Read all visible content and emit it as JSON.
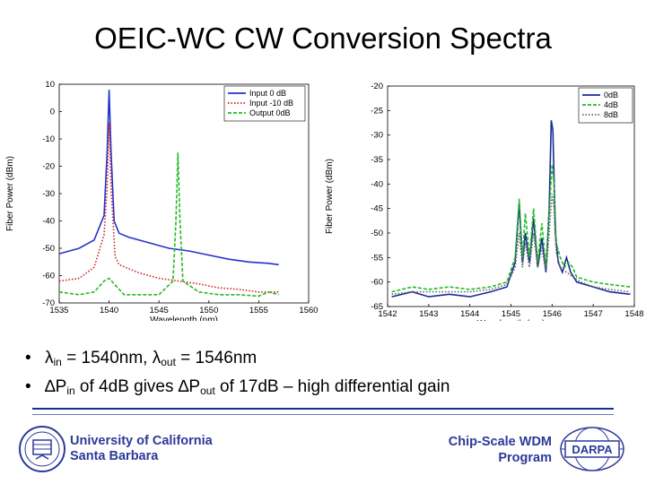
{
  "title": "OEIC-WC CW Conversion Spectra",
  "bullets": [
    {
      "sym": "λ",
      "a": "in",
      "b": " = 1540nm, ",
      "sym2": "λ",
      "c": "out",
      "d": " = 1546nm"
    },
    {
      "sym": "∆P",
      "a": "in",
      "b": " of 4dB gives ",
      "sym2": "∆P",
      "c": "out",
      "d": " of 17dB – high differential gain"
    }
  ],
  "footer": {
    "org_line1": "University of California",
    "org_line2": "Santa Barbara",
    "program_line1": "Chip-Scale WDM",
    "program_line2": "Program",
    "darpa_logo_text": "DARPA"
  },
  "chart_data": [
    {
      "type": "line",
      "xlabel": "Wavelength (nm)",
      "ylabel": "Fiber Power (dBm)",
      "xlim": [
        1535,
        1560
      ],
      "ylim": [
        -70,
        10
      ],
      "xticks": [
        1535,
        1540,
        1545,
        1550,
        1555,
        1560
      ],
      "yticks": [
        10,
        0,
        -10,
        -20,
        -30,
        -40,
        -50,
        -60,
        -70
      ],
      "legend_position": "top-right",
      "series": [
        {
          "name": "Input 0 dB",
          "color": "#2233cc",
          "style": "solid",
          "points": [
            [
              1535,
              -52
            ],
            [
              1537,
              -50
            ],
            [
              1538.5,
              -47
            ],
            [
              1539.5,
              -38
            ],
            [
              1539.8,
              -15
            ],
            [
              1540,
              8
            ],
            [
              1540.2,
              -15
            ],
            [
              1540.5,
              -40
            ],
            [
              1541,
              -44.5
            ],
            [
              1542,
              -46
            ],
            [
              1544,
              -48
            ],
            [
              1546,
              -50
            ],
            [
              1548,
              -51
            ],
            [
              1550,
              -52.5
            ],
            [
              1552,
              -54
            ],
            [
              1554,
              -55
            ],
            [
              1556,
              -55.5
            ],
            [
              1557,
              -56
            ]
          ]
        },
        {
          "name": "Input -10 dB",
          "color": "#cc2222",
          "style": "dotted",
          "points": [
            [
              1535,
              -62
            ],
            [
              1537,
              -61
            ],
            [
              1538.5,
              -57
            ],
            [
              1539.5,
              -45
            ],
            [
              1539.8,
              -28
            ],
            [
              1540,
              -4
            ],
            [
              1540.2,
              -28
            ],
            [
              1540.6,
              -53
            ],
            [
              1541,
              -56
            ],
            [
              1543,
              -59
            ],
            [
              1545,
              -61
            ],
            [
              1547,
              -62
            ],
            [
              1549,
              -63
            ],
            [
              1551,
              -64.5
            ],
            [
              1553,
              -65
            ],
            [
              1555,
              -66
            ],
            [
              1557,
              -66
            ]
          ]
        },
        {
          "name": "Output 0dB",
          "color": "#22bb22",
          "style": "dashed",
          "points": [
            [
              1535,
              -66
            ],
            [
              1537,
              -67
            ],
            [
              1538.5,
              -66
            ],
            [
              1539.5,
              -62
            ],
            [
              1540,
              -61
            ],
            [
              1540.5,
              -63
            ],
            [
              1541.5,
              -67
            ],
            [
              1543,
              -67
            ],
            [
              1545,
              -67
            ],
            [
              1546.4,
              -62
            ],
            [
              1546.7,
              -40
            ],
            [
              1546.9,
              -15
            ],
            [
              1547.1,
              -40
            ],
            [
              1547.4,
              -62
            ],
            [
              1549,
              -66
            ],
            [
              1551,
              -67
            ],
            [
              1553,
              -67
            ],
            [
              1555,
              -67.5
            ],
            [
              1556,
              -66
            ],
            [
              1557,
              -67
            ]
          ]
        }
      ]
    },
    {
      "type": "line",
      "xlabel": "Wavelength (nm)",
      "ylabel": "Fiber Power (dBm)",
      "xlim": [
        1542,
        1548
      ],
      "ylim": [
        -65,
        -20
      ],
      "xticks": [
        1542,
        1543,
        1544,
        1545,
        1546,
        1547,
        1548
      ],
      "yticks": [
        -20,
        -25,
        -30,
        -35,
        -40,
        -45,
        -50,
        -55,
        -60,
        -65
      ],
      "legend_position": "top-right",
      "series": [
        {
          "name": "0dB",
          "color": "#1a2a99",
          "style": "solid",
          "points": [
            [
              1542.1,
              -63
            ],
            [
              1542.6,
              -62
            ],
            [
              1543,
              -63
            ],
            [
              1543.5,
              -62.5
            ],
            [
              1544,
              -63
            ],
            [
              1544.5,
              -62
            ],
            [
              1544.9,
              -61
            ],
            [
              1545.1,
              -56
            ],
            [
              1545.2,
              -44
            ],
            [
              1545.28,
              -56
            ],
            [
              1545.35,
              -50
            ],
            [
              1545.45,
              -56
            ],
            [
              1545.55,
              -47
            ],
            [
              1545.65,
              -57
            ],
            [
              1545.75,
              -51
            ],
            [
              1545.85,
              -58
            ],
            [
              1545.93,
              -45
            ],
            [
              1545.98,
              -27
            ],
            [
              1546.02,
              -29
            ],
            [
              1546.08,
              -50
            ],
            [
              1546.15,
              -56
            ],
            [
              1546.25,
              -58
            ],
            [
              1546.35,
              -55
            ],
            [
              1546.45,
              -58
            ],
            [
              1546.6,
              -60
            ],
            [
              1547,
              -61
            ],
            [
              1547.4,
              -62
            ],
            [
              1547.9,
              -62.5
            ]
          ]
        },
        {
          "name": "4dB",
          "color": "#22bb22",
          "style": "dashed",
          "points": [
            [
              1542.1,
              -62
            ],
            [
              1542.6,
              -61
            ],
            [
              1543,
              -61.5
            ],
            [
              1543.5,
              -61
            ],
            [
              1544,
              -61.5
            ],
            [
              1544.5,
              -61
            ],
            [
              1544.9,
              -60
            ],
            [
              1545.1,
              -55
            ],
            [
              1545.2,
              -43
            ],
            [
              1545.28,
              -55
            ],
            [
              1545.35,
              -46
            ],
            [
              1545.45,
              -55
            ],
            [
              1545.55,
              -45
            ],
            [
              1545.65,
              -56
            ],
            [
              1545.75,
              -48
            ],
            [
              1545.85,
              -57
            ],
            [
              1545.93,
              -46
            ],
            [
              1546,
              -36
            ],
            [
              1546.05,
              -40
            ],
            [
              1546.1,
              -52
            ],
            [
              1546.2,
              -55
            ],
            [
              1546.3,
              -57
            ],
            [
              1546.4,
              -56
            ],
            [
              1546.5,
              -57
            ],
            [
              1546.6,
              -59
            ],
            [
              1547,
              -60
            ],
            [
              1547.4,
              -60.5
            ],
            [
              1547.9,
              -61
            ]
          ]
        },
        {
          "name": "8dB",
          "color": "#666666",
          "style": "dotted",
          "points": [
            [
              1542.1,
              -62.5
            ],
            [
              1542.6,
              -62
            ],
            [
              1543,
              -62
            ],
            [
              1543.5,
              -62
            ],
            [
              1544,
              -62
            ],
            [
              1544.5,
              -61.5
            ],
            [
              1544.9,
              -60.5
            ],
            [
              1545.1,
              -57
            ],
            [
              1545.2,
              -50
            ],
            [
              1545.28,
              -57
            ],
            [
              1545.35,
              -52
            ],
            [
              1545.45,
              -57
            ],
            [
              1545.55,
              -50
            ],
            [
              1545.65,
              -57
            ],
            [
              1545.75,
              -53
            ],
            [
              1545.85,
              -58
            ],
            [
              1545.93,
              -50
            ],
            [
              1546,
              -42
            ],
            [
              1546.05,
              -45
            ],
            [
              1546.1,
              -54
            ],
            [
              1546.2,
              -57
            ],
            [
              1546.35,
              -58
            ],
            [
              1546.5,
              -59
            ],
            [
              1546.7,
              -60
            ],
            [
              1547,
              -61
            ],
            [
              1547.4,
              -61.5
            ],
            [
              1547.9,
              -62
            ]
          ]
        }
      ]
    }
  ]
}
